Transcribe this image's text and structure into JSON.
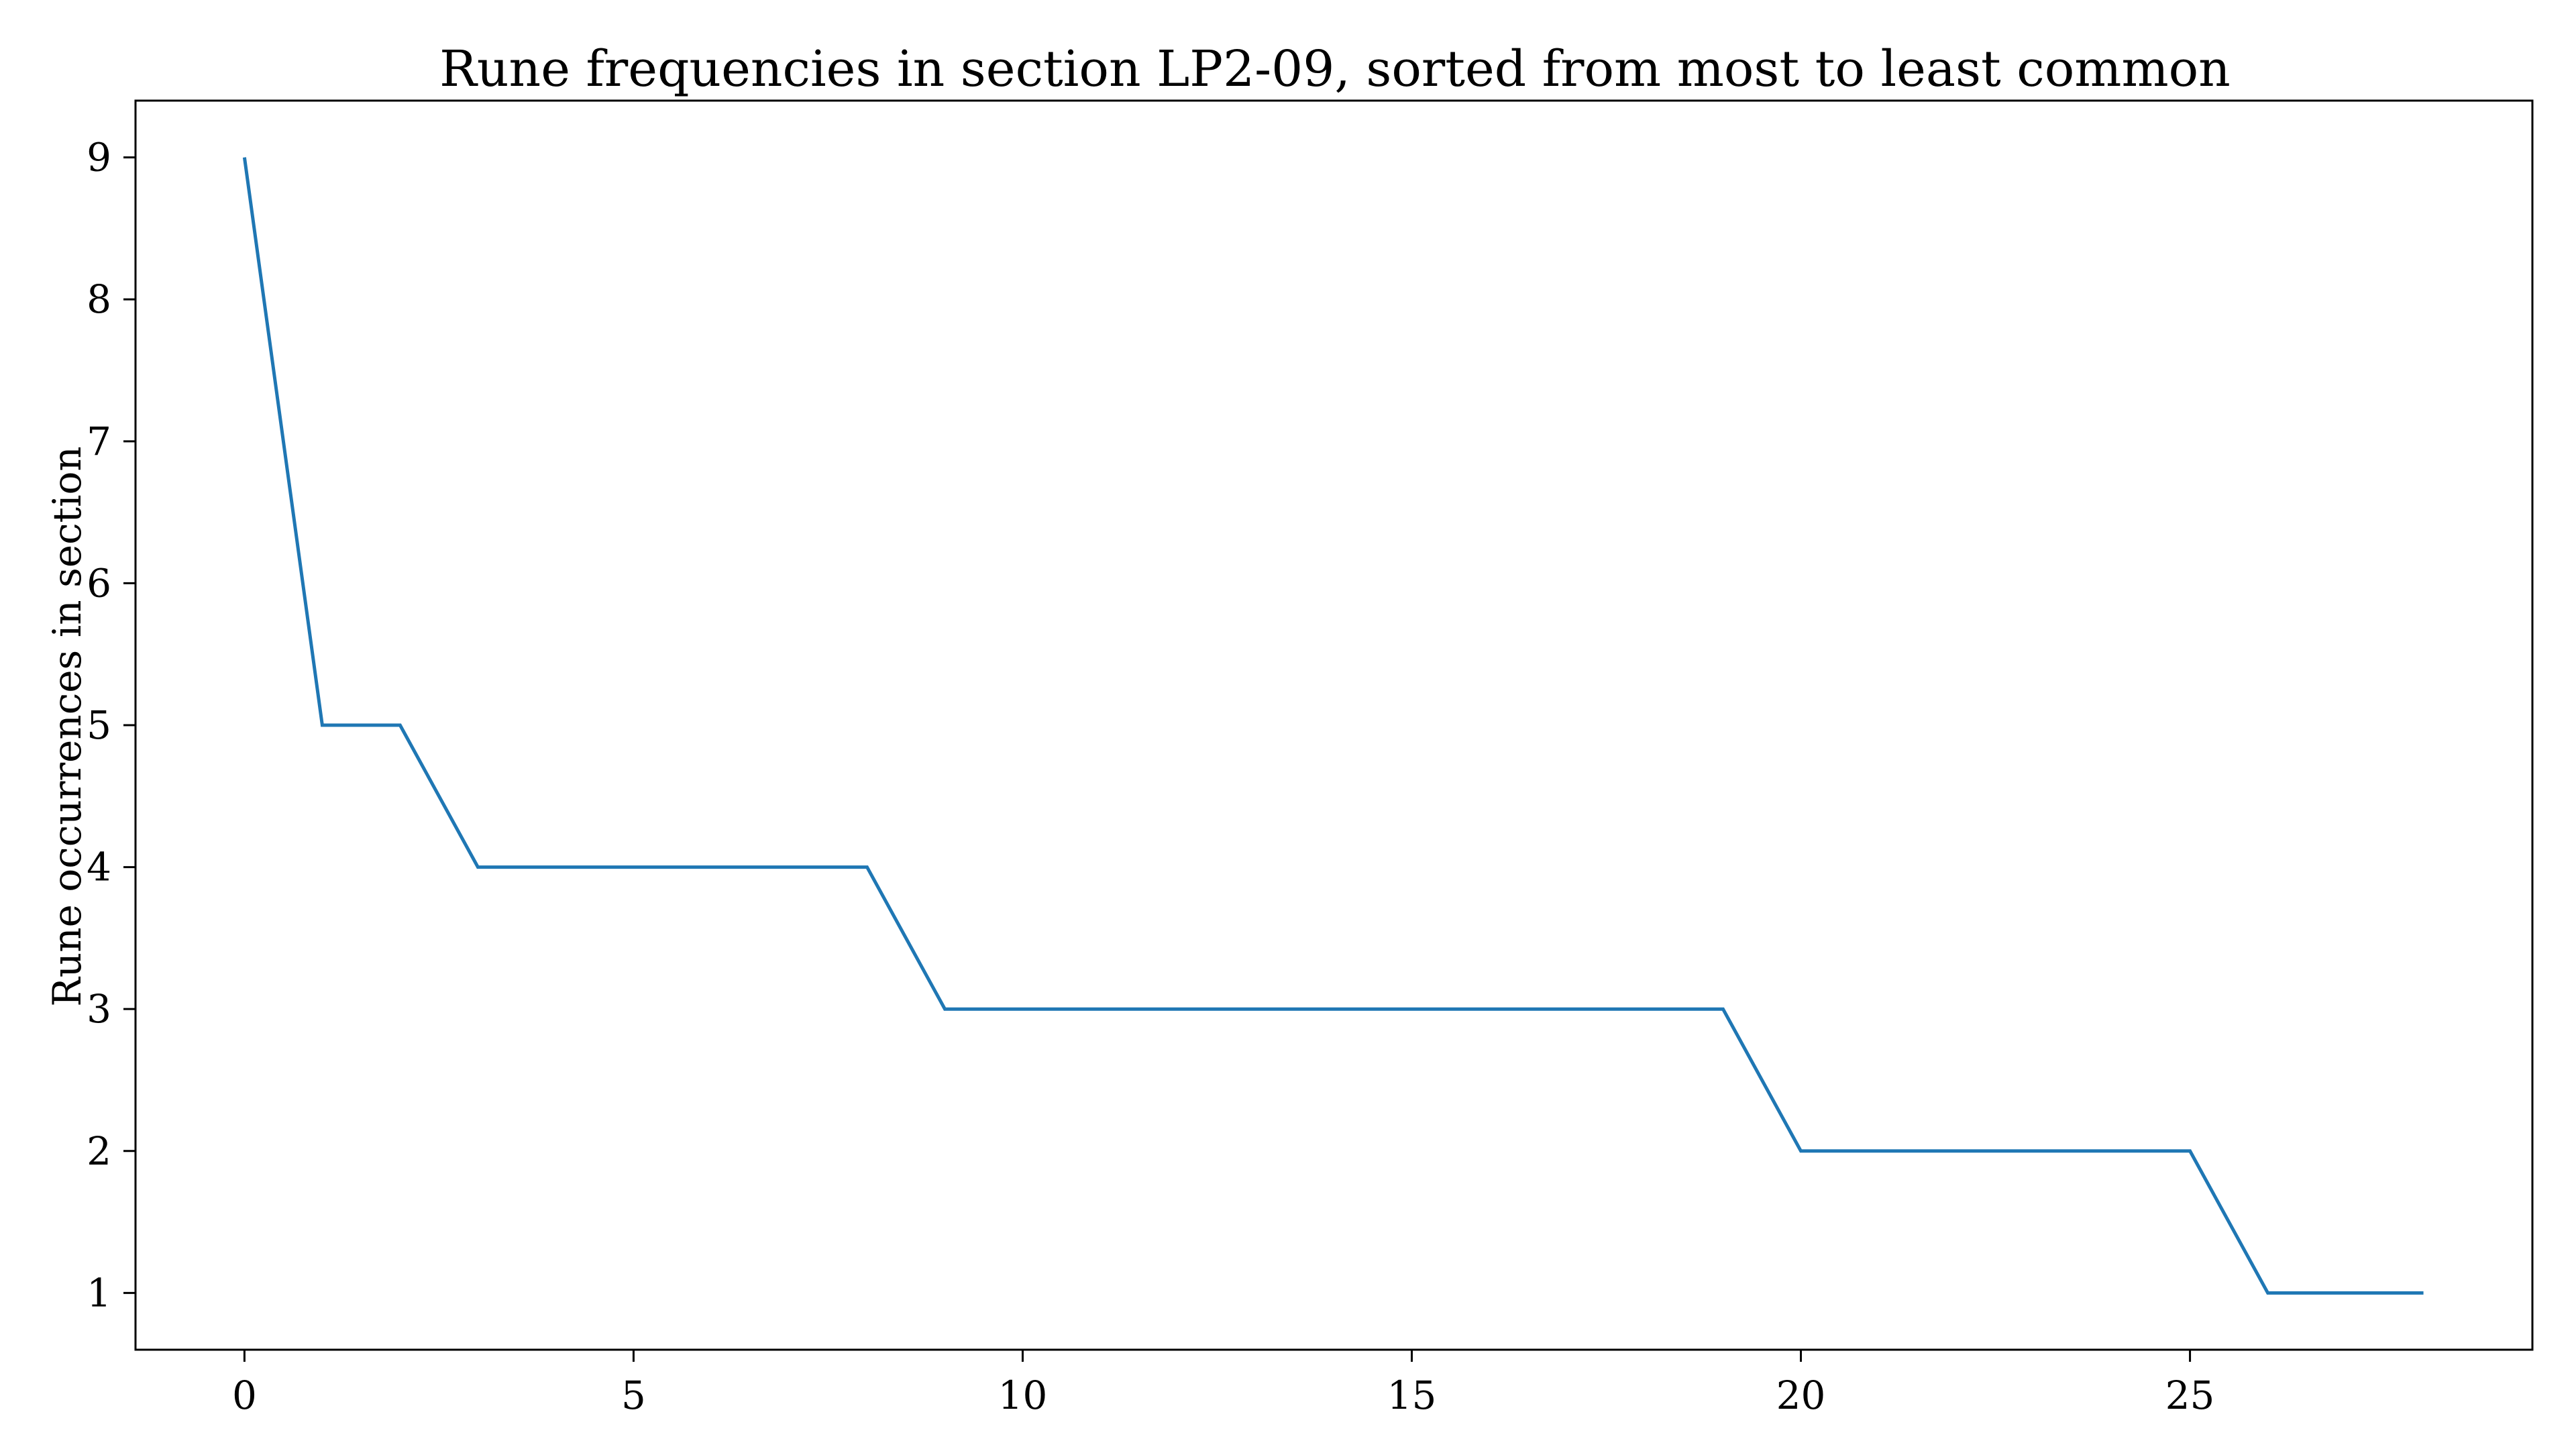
{
  "chart_data": {
    "type": "line",
    "title": "Rune frequencies in section LP2-09, sorted from most to least common",
    "xlabel": "",
    "ylabel": "Rune occurrences in section",
    "x": [
      0,
      1,
      2,
      3,
      4,
      5,
      6,
      7,
      8,
      9,
      10,
      11,
      12,
      13,
      14,
      15,
      16,
      17,
      18,
      19,
      20,
      21,
      22,
      23,
      24,
      25,
      26,
      27,
      28
    ],
    "series": [
      {
        "values": [
          9,
          5,
          5,
          4,
          4,
          4,
          4,
          4,
          4,
          3,
          3,
          3,
          3,
          3,
          3,
          3,
          3,
          3,
          3,
          3,
          2,
          2,
          2,
          2,
          2,
          2,
          1,
          1,
          1
        ],
        "color": "#1f77b4"
      }
    ],
    "xlim": [
      -1.4,
      29.4
    ],
    "ylim": [
      0.6,
      9.4
    ],
    "xticks": [
      0,
      5,
      10,
      15,
      20,
      25
    ],
    "yticks": [
      1,
      2,
      3,
      4,
      5,
      6,
      7,
      8,
      9
    ],
    "grid": false,
    "legend": "none"
  }
}
